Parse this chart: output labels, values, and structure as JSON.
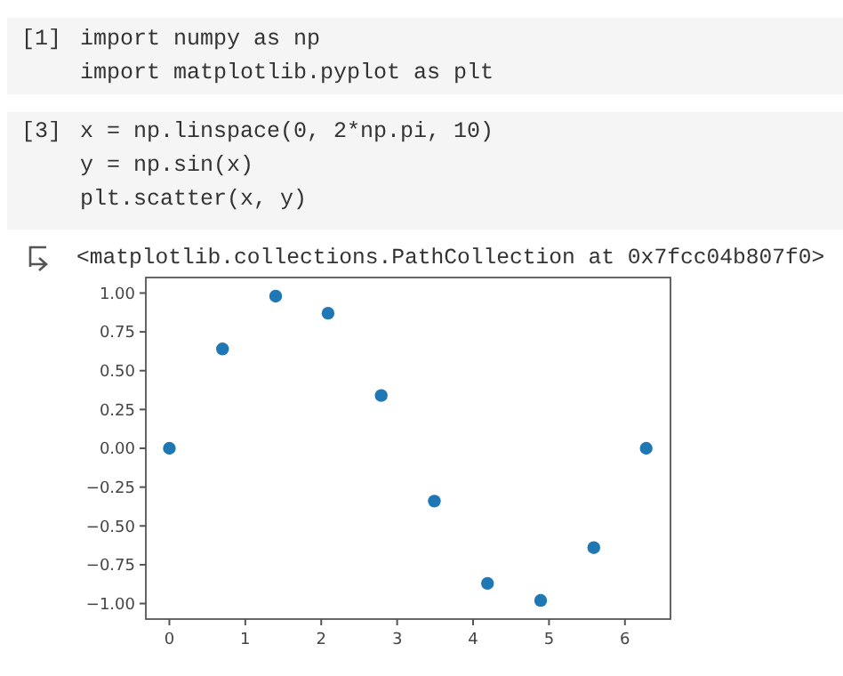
{
  "chart_data": {
    "type": "scatter",
    "annotations": [
      "[1]",
      "import numpy as np",
      "import matplotlib.pyplot as plt",
      "[3]",
      "x = np.linspace(0, 2*np.pi, 10)",
      "y = np.sin(x)",
      "plt.scatter(x, y)",
      "<matplotlib.collections.PathCollection at 0x7fcc04b807f0>"
    ],
    "x": [
      0,
      0.7,
      1.4,
      2.09,
      2.79,
      3.49,
      4.19,
      4.89,
      5.59,
      6.28
    ],
    "values": [
      0,
      0.64,
      0.98,
      0.87,
      0.34,
      -0.34,
      -0.87,
      -0.98,
      -0.64,
      0
    ],
    "color": "#1f77b4",
    "xlim": [
      -0.31,
      6.6
    ],
    "xticks": [
      0,
      1,
      2,
      3,
      4,
      5,
      6
    ],
    "ylim": [
      -1.1,
      1.1
    ],
    "yticks": [
      {
        "value": -1,
        "label": "−1.00"
      },
      {
        "value": -0.75,
        "label": "−0.75"
      },
      {
        "value": -0.5,
        "label": "−0.50"
      },
      {
        "value": -0.25,
        "label": "−0.25"
      },
      {
        "value": 0,
        "label": "0.00"
      },
      {
        "value": 0.25,
        "label": "0.25"
      },
      {
        "value": 0.5,
        "label": "0.50"
      },
      {
        "value": 0.75,
        "label": "0.75"
      },
      {
        "value": 1,
        "label": "1.00"
      }
    ],
    "marker": "circle",
    "grid": false
  }
}
